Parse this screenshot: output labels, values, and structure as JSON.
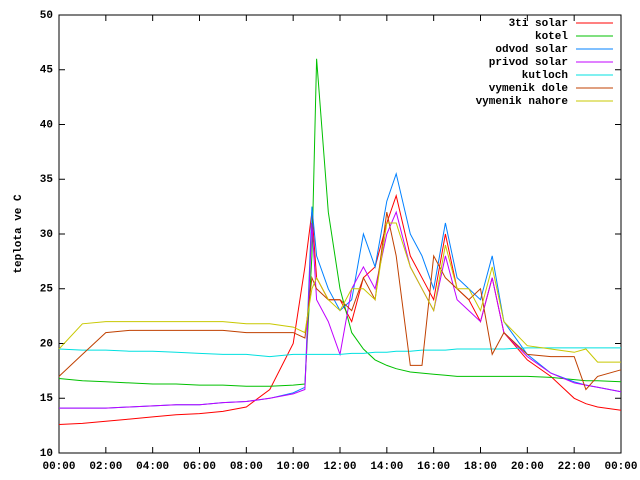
{
  "chart_data": {
    "type": "line",
    "ylabel": "teplota ve C",
    "x": [
      0,
      1,
      2,
      3,
      4,
      5,
      6,
      7,
      8,
      9,
      10,
      10.5,
      10.8,
      11,
      11.5,
      12,
      12.5,
      13,
      13.5,
      14,
      14.4,
      15,
      15.5,
      16,
      16.5,
      17,
      17.5,
      18,
      18.5,
      19,
      20,
      21,
      22,
      22.5,
      23,
      24
    ],
    "xlim": [
      0,
      24
    ],
    "xticks": [
      {
        "value": 0,
        "label": "00:00"
      },
      {
        "value": 2,
        "label": "02:00"
      },
      {
        "value": 4,
        "label": "04:00"
      },
      {
        "value": 6,
        "label": "06:00"
      },
      {
        "value": 8,
        "label": "08:00"
      },
      {
        "value": 10,
        "label": "10:00"
      },
      {
        "value": 12,
        "label": "12:00"
      },
      {
        "value": 14,
        "label": "14:00"
      },
      {
        "value": 16,
        "label": "16:00"
      },
      {
        "value": 18,
        "label": "18:00"
      },
      {
        "value": 20,
        "label": "20:00"
      },
      {
        "value": 22,
        "label": "22:00"
      },
      {
        "value": 24,
        "label": "00:00"
      }
    ],
    "ylim": [
      10,
      50
    ],
    "yticks": [
      10,
      15,
      20,
      25,
      30,
      35,
      40,
      45,
      50
    ],
    "legend": "top-right",
    "series": [
      {
        "name": "3ti solar",
        "color": "#ff0000",
        "values": [
          12.6,
          12.7,
          12.9,
          13.1,
          13.3,
          13.5,
          13.6,
          13.8,
          14.2,
          15.8,
          20,
          27,
          32,
          26,
          24,
          24,
          22,
          26,
          27,
          31,
          33.5,
          28,
          26,
          24,
          30,
          25,
          24,
          22,
          26,
          21,
          18.5,
          17,
          15,
          14.5,
          14.2,
          13.9
        ]
      },
      {
        "name": "kotel",
        "color": "#00c000",
        "values": [
          16.8,
          16.6,
          16.5,
          16.4,
          16.3,
          16.3,
          16.2,
          16.2,
          16.1,
          16.1,
          16.2,
          16.3,
          28,
          46,
          32,
          25,
          21,
          19.5,
          18.5,
          18,
          17.7,
          17.4,
          17.3,
          17.2,
          17.1,
          17,
          17,
          17,
          17,
          17,
          17,
          16.9,
          16.7,
          16.6,
          16.6,
          16.5
        ]
      },
      {
        "name": "odvod solar",
        "color": "#0080ff",
        "values": [
          14.1,
          14.1,
          14.1,
          14.2,
          14.3,
          14.4,
          14.4,
          14.6,
          14.7,
          15,
          15.5,
          16,
          32.5,
          28,
          25,
          23,
          24,
          30,
          27,
          33,
          35.5,
          30,
          28,
          25,
          31,
          26,
          25,
          24,
          28,
          22,
          19,
          17.3,
          16.5,
          16.2,
          16,
          15.6
        ]
      },
      {
        "name": "privod solar",
        "color": "#c000ff",
        "values": [
          14.1,
          14.1,
          14.1,
          14.2,
          14.3,
          14.4,
          14.4,
          14.6,
          14.7,
          15,
          15.4,
          15.8,
          31,
          24,
          22,
          19,
          25,
          27,
          25,
          30,
          32,
          27,
          25,
          23,
          28,
          24,
          23,
          22,
          26,
          21,
          18.8,
          17.3,
          16.4,
          16.2,
          16,
          15.6
        ]
      },
      {
        "name": "kutloch",
        "color": "#00e0e0",
        "values": [
          19.5,
          19.4,
          19.4,
          19.3,
          19.3,
          19.2,
          19.1,
          19,
          19,
          18.8,
          19,
          19,
          19,
          19,
          19,
          19,
          19.1,
          19.1,
          19.2,
          19.2,
          19.3,
          19.3,
          19.4,
          19.4,
          19.4,
          19.5,
          19.5,
          19.5,
          19.5,
          19.5,
          19.6,
          19.6,
          19.6,
          19.6,
          19.6,
          19.6
        ]
      },
      {
        "name": "vymenik dole",
        "color": "#c04000",
        "values": [
          17,
          19,
          21,
          21.2,
          21.2,
          21.2,
          21.2,
          21.2,
          21,
          21,
          21,
          20.5,
          26,
          25,
          24,
          24,
          23,
          26,
          24,
          32,
          28,
          18,
          18,
          28,
          26,
          25,
          24,
          25,
          19,
          21,
          19,
          18.8,
          18.8,
          15.8,
          17,
          17.6
        ]
      },
      {
        "name": "vymenik nahore",
        "color": "#c8c800",
        "values": [
          19.5,
          21.8,
          22,
          22,
          22,
          22,
          22,
          22,
          21.8,
          21.8,
          21.5,
          21,
          25,
          26,
          24,
          23,
          25,
          25,
          24,
          31,
          31,
          27,
          25,
          23,
          29,
          25,
          25,
          23,
          27,
          22,
          19.8,
          19.5,
          19.2,
          19.5,
          18.3,
          18.3
        ]
      }
    ]
  }
}
